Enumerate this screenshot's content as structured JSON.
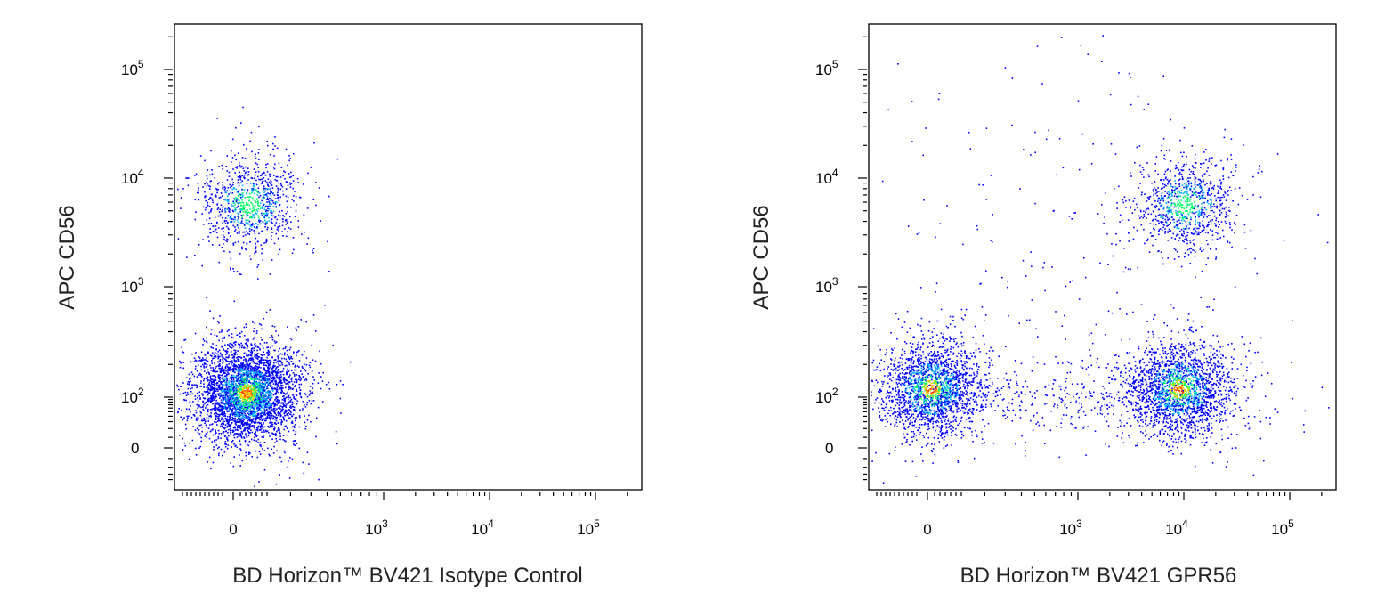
{
  "chart_data": [
    {
      "type": "scatter",
      "style": "pseudocolor density dot plot (flow cytometry, biexponential axes)",
      "title": "",
      "xlabel": "BD Horizon™ BV421 Isotype Control",
      "ylabel": "APC CD56",
      "x_scale": "biexponential",
      "y_scale": "biexponential",
      "x_ticks": [
        {
          "base": "0",
          "exp": ""
        },
        {
          "base": "10",
          "exp": "3"
        },
        {
          "base": "10",
          "exp": "4"
        },
        {
          "base": "10",
          "exp": "5"
        }
      ],
      "y_ticks": [
        {
          "base": "10",
          "exp": "5"
        },
        {
          "base": "10",
          "exp": "4"
        },
        {
          "base": "10",
          "exp": "3"
        },
        {
          "base": "10",
          "exp": "2"
        },
        {
          "base": "0",
          "exp": ""
        }
      ],
      "grid": false,
      "density_colors": [
        "#0000ff",
        "#00b4ff",
        "#00ff66",
        "#ffd000",
        "#ff3000"
      ],
      "populations": [
        {
          "x_center": 50,
          "y_center": 6000,
          "approx_events": 900
        },
        {
          "x_center": 40,
          "y_center": 110,
          "approx_events": 3800
        }
      ]
    },
    {
      "type": "scatter",
      "style": "pseudocolor density dot plot (flow cytometry, biexponential axes)",
      "title": "",
      "xlabel": "BD Horizon™ BV421 GPR56",
      "ylabel": "APC CD56",
      "x_scale": "biexponential",
      "y_scale": "biexponential",
      "x_ticks": [
        {
          "base": "0",
          "exp": ""
        },
        {
          "base": "10",
          "exp": "3"
        },
        {
          "base": "10",
          "exp": "4"
        },
        {
          "base": "10",
          "exp": "5"
        }
      ],
      "y_ticks": [
        {
          "base": "10",
          "exp": "5"
        },
        {
          "base": "10",
          "exp": "4"
        },
        {
          "base": "10",
          "exp": "3"
        },
        {
          "base": "10",
          "exp": "2"
        },
        {
          "base": "0",
          "exp": ""
        }
      ],
      "grid": false,
      "density_colors": [
        "#0000ff",
        "#00b4ff",
        "#00ff66",
        "#ffd000",
        "#ff3000"
      ],
      "populations": [
        {
          "x_center": 10,
          "y_center": 120,
          "approx_events": 2000
        },
        {
          "x_center": 9000,
          "y_center": 120,
          "approx_events": 2000
        },
        {
          "x_center": 10000,
          "y_center": 6000,
          "approx_events": 900
        },
        {
          "x_center": 900,
          "y_center": 100,
          "approx_events": 450
        },
        {
          "x_center": 600,
          "y_center": 3000,
          "approx_events": 200
        }
      ]
    }
  ]
}
